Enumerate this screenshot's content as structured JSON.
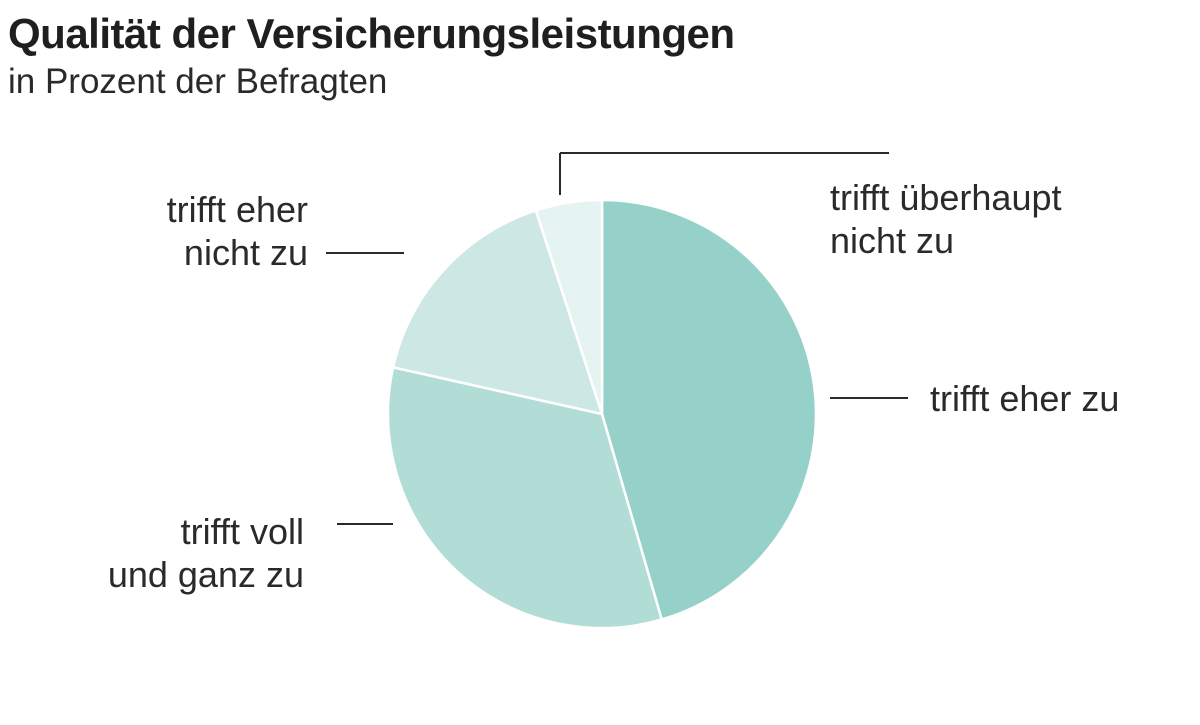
{
  "title": "Qualität der Versicherungsleistungen",
  "subtitle": "in Prozent der Befragten",
  "chart_data": {
    "type": "pie",
    "title": "Qualität der Versicherungsleistungen",
    "subtitle": "in Prozent der Befragten",
    "start_angle": "12 o'clock, clockwise",
    "slices": [
      {
        "name": "trifft eher zu",
        "label_lines": [
          "trifft eher zu"
        ],
        "value": 45.5,
        "color": "#95d1c8"
      },
      {
        "name": "trifft voll und ganz zu",
        "label_lines": [
          "trifft voll",
          "und ganz zu"
        ],
        "value": 33.0,
        "color": "#b2ddd6"
      },
      {
        "name": "trifft eher nicht zu",
        "label_lines": [
          "trifft eher",
          "nicht zu"
        ],
        "value": 16.5,
        "color": "#cde8e4"
      },
      {
        "name": "trifft überhaupt nicht zu",
        "label_lines": [
          "trifft überhaupt",
          "nicht zu"
        ],
        "value": 5.0,
        "color": "#e5f3f1"
      }
    ]
  }
}
